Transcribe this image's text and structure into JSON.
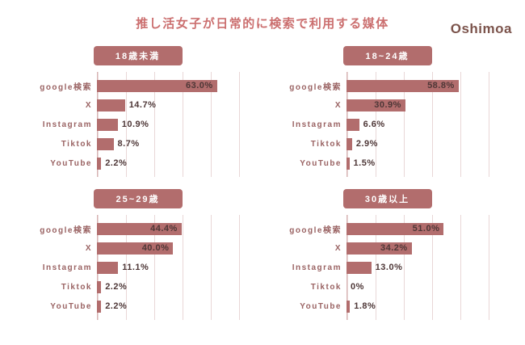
{
  "brand": "Oshimoa",
  "title": "推し活女子が日常的に検索で利用する媒体",
  "colors": {
    "rose": "#b26d6d",
    "title": "#cb6f6f",
    "label": "#9a6363",
    "value": "#4e3737",
    "grid": "#e9d7d7",
    "axis": "#d8b4b4",
    "logo": "#7c544c",
    "badge_text": "#ffffff"
  },
  "chart_data": [
    {
      "type": "bar",
      "orientation": "horizontal",
      "title": "18歳未満",
      "categories": [
        "google検索",
        "X",
        "Instagram",
        "Tiktok",
        "YouTube"
      ],
      "values": [
        63.0,
        14.7,
        10.9,
        8.7,
        2.2
      ],
      "value_labels": [
        "63.0%",
        "14.7%",
        "10.9%",
        "8.7%",
        "2.2%"
      ],
      "xlim": [
        0,
        75
      ],
      "grid": true,
      "legend": "none"
    },
    {
      "type": "bar",
      "orientation": "horizontal",
      "title": "18~24歳",
      "categories": [
        "google検索",
        "X",
        "Instagram",
        "Tiktok",
        "YouTube"
      ],
      "values": [
        58.8,
        30.9,
        6.6,
        2.9,
        1.5
      ],
      "value_labels": [
        "58.8%",
        "30.9%",
        "6.6%",
        "2.9%",
        "1.5%"
      ],
      "xlim": [
        0,
        75
      ],
      "grid": true,
      "legend": "none"
    },
    {
      "type": "bar",
      "orientation": "horizontal",
      "title": "25~29歳",
      "categories": [
        "google検索",
        "X",
        "Instagram",
        "Tiktok",
        "YouTube"
      ],
      "values": [
        44.4,
        40.0,
        11.1,
        2.2,
        2.2
      ],
      "value_labels": [
        "44.4%",
        "40.0%",
        "11.1%",
        "2.2%",
        "2.2%"
      ],
      "xlim": [
        0,
        75
      ],
      "grid": true,
      "legend": "none"
    },
    {
      "type": "bar",
      "orientation": "horizontal",
      "title": "30歳以上",
      "categories": [
        "google検索",
        "X",
        "Instagram",
        "Tiktok",
        "YouTube"
      ],
      "values": [
        51.0,
        34.2,
        13.0,
        0,
        1.8
      ],
      "value_labels": [
        "51.0%",
        "34.2%",
        "13.0%",
        "0%",
        "1.8%"
      ],
      "xlim": [
        0,
        75
      ],
      "grid": true,
      "legend": "none"
    }
  ]
}
